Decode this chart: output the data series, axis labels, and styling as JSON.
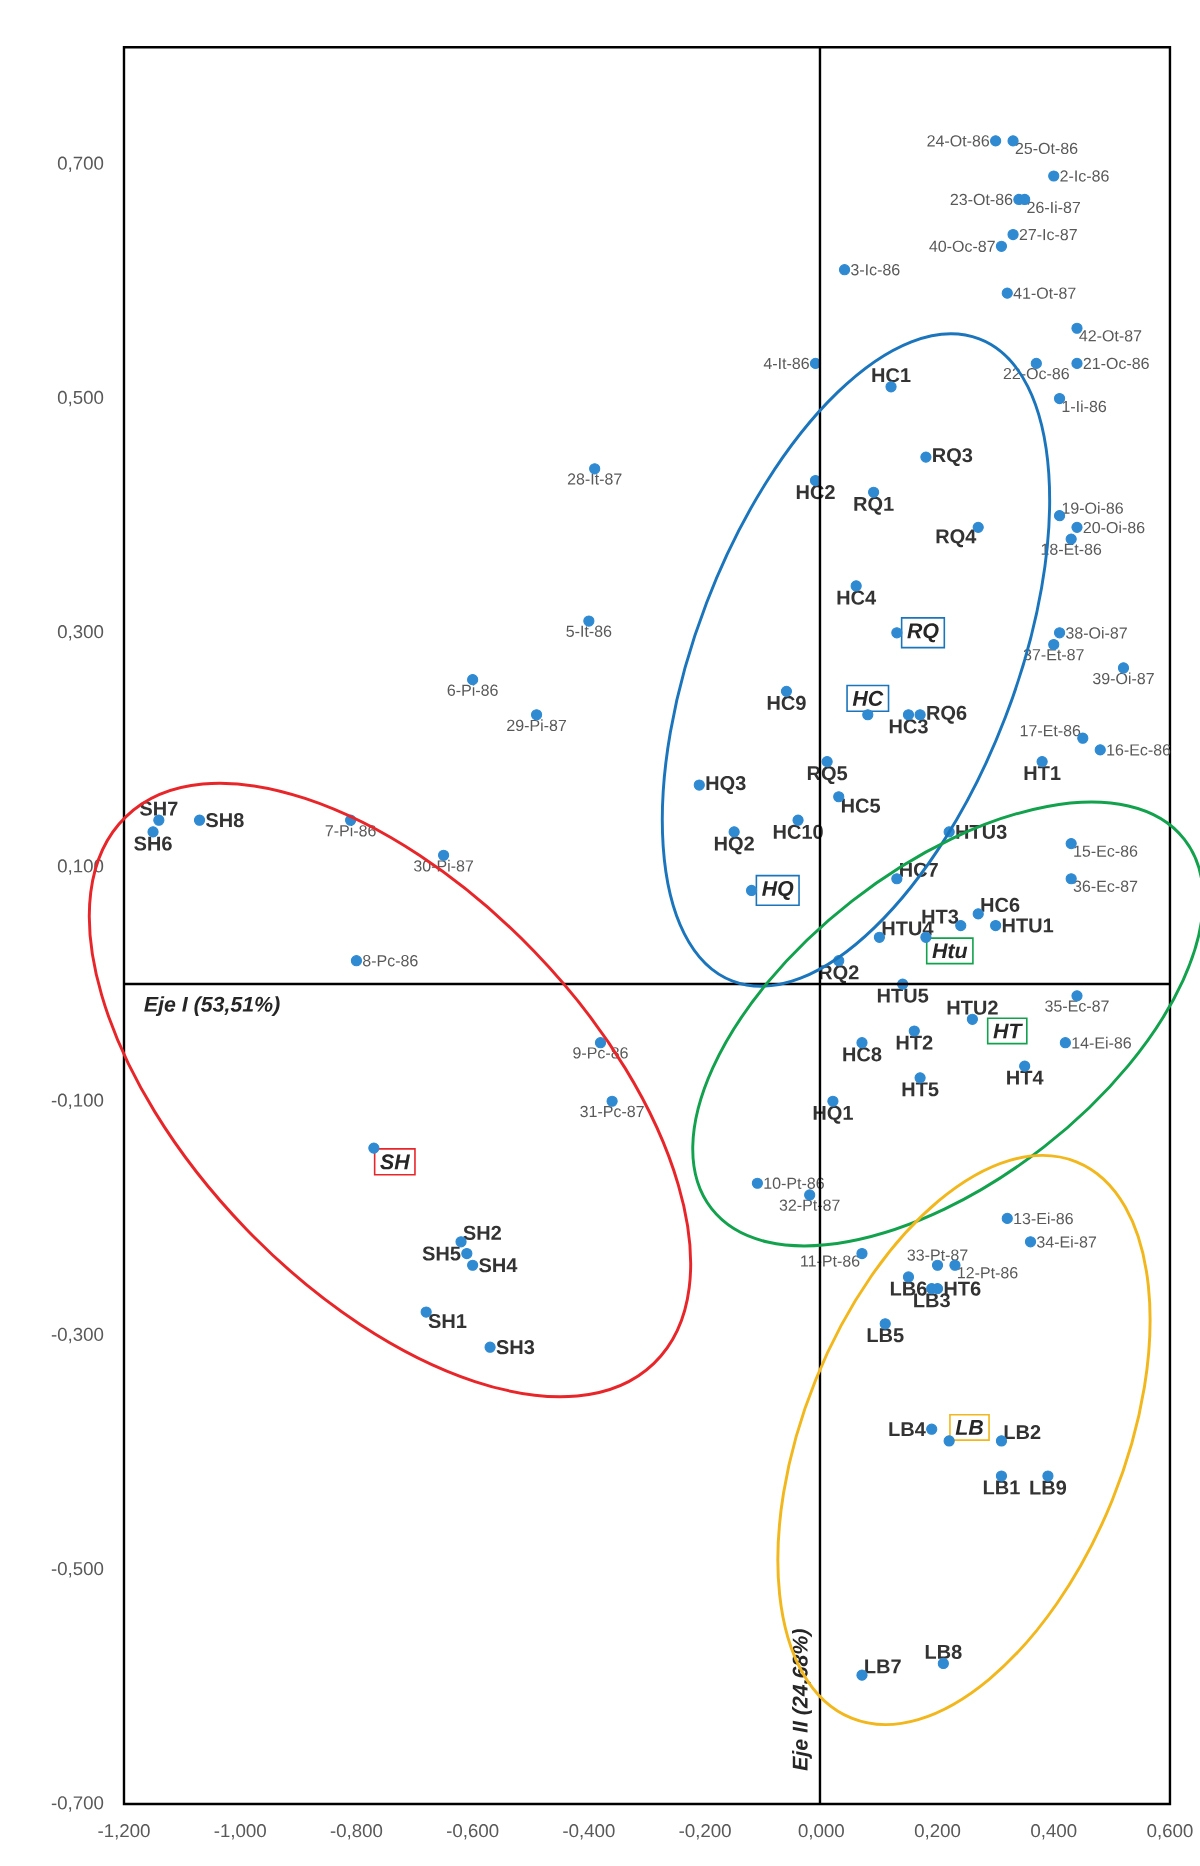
{
  "chart_data": {
    "type": "scatter",
    "xlabel": "Eje I (53,51%)",
    "ylabel": "Eje II (24,68%)",
    "color": "#2f8ad2",
    "marker": "circle",
    "xlim": [
      -1.2,
      0.6
    ],
    "ylim": [
      -0.7,
      0.8
    ],
    "xticks": [
      {
        "value": -1.2,
        "label": "-1,200"
      },
      {
        "value": -1.0,
        "label": "-1,000"
      },
      {
        "value": -0.8,
        "label": "-0,800"
      },
      {
        "value": -0.6,
        "label": "-0,600"
      },
      {
        "value": -0.4,
        "label": "-0,400"
      },
      {
        "value": -0.2,
        "label": "-0,200"
      },
      {
        "value": 0.0,
        "label": "0,000"
      },
      {
        "value": 0.2,
        "label": "0,200"
      },
      {
        "value": 0.4,
        "label": "0,400"
      },
      {
        "value": 0.6,
        "label": "0,600"
      }
    ],
    "yticks": [
      {
        "value": -0.7,
        "label": "-0,700"
      },
      {
        "value": -0.5,
        "label": "-0,500"
      },
      {
        "value": -0.3,
        "label": "-0,300"
      },
      {
        "value": -0.1,
        "label": "-0,100"
      },
      {
        "value": 0.1,
        "label": "0,100"
      },
      {
        "value": 0.3,
        "label": "0,300"
      },
      {
        "value": 0.5,
        "label": "0,500"
      },
      {
        "value": 0.7,
        "label": "0,700"
      }
    ],
    "x": [
      0.3,
      0.33,
      0.4,
      0.34,
      0.35,
      0.33,
      0.31,
      0.04,
      0.32,
      0.44,
      -0.01,
      0.37,
      0.44,
      0.41,
      0.41,
      0.44,
      0.43,
      0.41,
      0.4,
      0.52,
      0.45,
      0.48,
      0.43,
      0.43,
      0.44,
      0.42,
      -0.39,
      -0.4,
      -0.6,
      -0.49,
      -0.81,
      -0.65,
      -0.8,
      -0.38,
      -0.36,
      -0.11,
      -0.02,
      0.07,
      0.2,
      0.23,
      0.32,
      0.36,
      0.12,
      -0.01,
      0.09,
      0.18,
      0.27,
      0.06,
      -0.06,
      0.15,
      0.17,
      0.01,
      -0.21,
      0.03,
      -0.04,
      -0.15,
      0.13,
      0.22,
      0.38,
      0.24,
      0.27,
      0.3,
      0.1,
      0.03,
      0.14,
      0.26,
      0.16,
      0.07,
      0.17,
      0.35,
      0.02,
      0.15,
      0.19,
      0.2,
      0.11,
      0.19,
      0.31,
      0.31,
      0.39,
      0.07,
      0.21,
      -1.14,
      -1.15,
      -1.07,
      -0.62,
      -0.61,
      -0.6,
      -0.68,
      -0.57,
      -0.77,
      -0.12,
      0.08,
      0.13,
      0.18,
      0.22
    ],
    "values": [
      0.72,
      0.72,
      0.69,
      0.67,
      0.67,
      0.64,
      0.63,
      0.61,
      0.59,
      0.56,
      0.53,
      0.53,
      0.53,
      0.5,
      0.4,
      0.39,
      0.38,
      0.3,
      0.29,
      0.27,
      0.21,
      0.2,
      0.12,
      0.09,
      -0.01,
      -0.05,
      0.44,
      0.31,
      0.26,
      0.23,
      0.14,
      0.11,
      0.02,
      -0.05,
      -0.1,
      -0.17,
      -0.18,
      -0.23,
      -0.24,
      -0.24,
      -0.2,
      -0.22,
      0.51,
      0.43,
      0.42,
      0.45,
      0.39,
      0.34,
      0.25,
      0.23,
      0.23,
      0.19,
      0.17,
      0.16,
      0.14,
      0.13,
      0.09,
      0.13,
      0.19,
      0.05,
      0.06,
      0.05,
      0.04,
      0.02,
      0.0,
      -0.03,
      -0.04,
      -0.05,
      -0.08,
      -0.07,
      -0.1,
      -0.25,
      -0.26,
      -0.26,
      -0.29,
      -0.38,
      -0.39,
      -0.42,
      -0.42,
      -0.59,
      -0.58,
      0.14,
      0.13,
      0.14,
      -0.22,
      -0.23,
      -0.24,
      -0.28,
      -0.31,
      -0.14,
      0.08,
      0.23,
      0.3,
      0.04,
      -0.39
    ],
    "annotations": [
      {
        "text": "24-Ot-86",
        "x": 0.3,
        "y": 0.72
      },
      {
        "text": "25-Ot-86",
        "x": 0.33,
        "y": 0.72
      },
      {
        "text": "2-Ic-86",
        "x": 0.4,
        "y": 0.69
      },
      {
        "text": "23-Ot-86",
        "x": 0.34,
        "y": 0.67
      },
      {
        "text": "26-Ii-87",
        "x": 0.35,
        "y": 0.67
      },
      {
        "text": "27-Ic-87",
        "x": 0.33,
        "y": 0.64
      },
      {
        "text": "40-Oc-87",
        "x": 0.31,
        "y": 0.63
      },
      {
        "text": "3-Ic-86",
        "x": 0.04,
        "y": 0.61
      },
      {
        "text": "41-Ot-87",
        "x": 0.32,
        "y": 0.59
      },
      {
        "text": "42-Ot-87",
        "x": 0.44,
        "y": 0.56
      },
      {
        "text": "4-It-86",
        "x": -0.01,
        "y": 0.53
      },
      {
        "text": "22-Oc-86",
        "x": 0.37,
        "y": 0.53
      },
      {
        "text": "21-Oc-86",
        "x": 0.44,
        "y": 0.53
      },
      {
        "text": "1-Ii-86",
        "x": 0.41,
        "y": 0.5
      },
      {
        "text": "19-Oi-86",
        "x": 0.41,
        "y": 0.4
      },
      {
        "text": "20-Oi-86",
        "x": 0.44,
        "y": 0.39
      },
      {
        "text": "18-Et-86",
        "x": 0.43,
        "y": 0.38
      },
      {
        "text": "38-Oi-87",
        "x": 0.41,
        "y": 0.3
      },
      {
        "text": "37-Et-87",
        "x": 0.4,
        "y": 0.29
      },
      {
        "text": "39-Oi-87",
        "x": 0.52,
        "y": 0.27
      },
      {
        "text": "17-Et-86",
        "x": 0.45,
        "y": 0.21
      },
      {
        "text": "16-Ec-86",
        "x": 0.48,
        "y": 0.2
      },
      {
        "text": "15-Ec-86",
        "x": 0.43,
        "y": 0.12
      },
      {
        "text": "36-Ec-87",
        "x": 0.43,
        "y": 0.09
      },
      {
        "text": "35-Ec-87",
        "x": 0.44,
        "y": -0.01
      },
      {
        "text": "14-Ei-86",
        "x": 0.42,
        "y": -0.05
      },
      {
        "text": "28-It-87",
        "x": -0.39,
        "y": 0.44
      },
      {
        "text": "5-It-86",
        "x": -0.4,
        "y": 0.31
      },
      {
        "text": "6-Pi-86",
        "x": -0.6,
        "y": 0.26
      },
      {
        "text": "29-Pi-87",
        "x": -0.49,
        "y": 0.23
      },
      {
        "text": "7-Pi-86",
        "x": -0.81,
        "y": 0.14
      },
      {
        "text": "30-Pi-87",
        "x": -0.65,
        "y": 0.11
      },
      {
        "text": "8-Pc-86",
        "x": -0.8,
        "y": 0.02
      },
      {
        "text": "9-Pc-86",
        "x": -0.38,
        "y": -0.05
      },
      {
        "text": "31-Pc-87",
        "x": -0.36,
        "y": -0.1
      },
      {
        "text": "10-Pt-86",
        "x": -0.11,
        "y": -0.17
      },
      {
        "text": "32-Pt-87",
        "x": -0.02,
        "y": -0.18
      },
      {
        "text": "11-Pt-86",
        "x": 0.07,
        "y": -0.23
      },
      {
        "text": "33-Pt-87",
        "x": 0.2,
        "y": -0.24
      },
      {
        "text": "12-Pt-86",
        "x": 0.23,
        "y": -0.24
      },
      {
        "text": "13-Ei-86",
        "x": 0.32,
        "y": -0.2
      },
      {
        "text": "34-Ei-87",
        "x": 0.36,
        "y": -0.22
      },
      {
        "text": "HC1",
        "x": 0.12,
        "y": 0.51
      },
      {
        "text": "HC2",
        "x": -0.01,
        "y": 0.43
      },
      {
        "text": "RQ1",
        "x": 0.09,
        "y": 0.42
      },
      {
        "text": "RQ3",
        "x": 0.18,
        "y": 0.45
      },
      {
        "text": "RQ4",
        "x": 0.27,
        "y": 0.39
      },
      {
        "text": "HC4",
        "x": 0.06,
        "y": 0.34
      },
      {
        "text": "HC9",
        "x": -0.06,
        "y": 0.25
      },
      {
        "text": "HC3",
        "x": 0.15,
        "y": 0.23
      },
      {
        "text": "RQ6",
        "x": 0.17,
        "y": 0.23
      },
      {
        "text": "RQ5",
        "x": 0.01,
        "y": 0.19
      },
      {
        "text": "HQ3",
        "x": -0.21,
        "y": 0.17
      },
      {
        "text": "HC5",
        "x": 0.03,
        "y": 0.16
      },
      {
        "text": "HC10",
        "x": -0.04,
        "y": 0.14
      },
      {
        "text": "HQ2",
        "x": -0.15,
        "y": 0.13
      },
      {
        "text": "HC7",
        "x": 0.13,
        "y": 0.09
      },
      {
        "text": "HTU3",
        "x": 0.22,
        "y": 0.13
      },
      {
        "text": "HT1",
        "x": 0.38,
        "y": 0.19
      },
      {
        "text": "HT3",
        "x": 0.24,
        "y": 0.05
      },
      {
        "text": "HC6",
        "x": 0.27,
        "y": 0.06
      },
      {
        "text": "HTU1",
        "x": 0.3,
        "y": 0.05
      },
      {
        "text": "HTU4",
        "x": 0.1,
        "y": 0.04
      },
      {
        "text": "RQ2",
        "x": 0.03,
        "y": 0.02
      },
      {
        "text": "HTU5",
        "x": 0.14,
        "y": 0.0
      },
      {
        "text": "HTU2",
        "x": 0.26,
        "y": -0.03
      },
      {
        "text": "HT2",
        "x": 0.16,
        "y": -0.04
      },
      {
        "text": "HC8",
        "x": 0.07,
        "y": -0.05
      },
      {
        "text": "HT5",
        "x": 0.17,
        "y": -0.08
      },
      {
        "text": "HT4",
        "x": 0.35,
        "y": -0.07
      },
      {
        "text": "HQ1",
        "x": 0.02,
        "y": -0.1
      },
      {
        "text": "LB6",
        "x": 0.15,
        "y": -0.25
      },
      {
        "text": "LB3",
        "x": 0.19,
        "y": -0.26
      },
      {
        "text": "HT6",
        "x": 0.2,
        "y": -0.26
      },
      {
        "text": "LB5",
        "x": 0.11,
        "y": -0.29
      },
      {
        "text": "LB4",
        "x": 0.19,
        "y": -0.38
      },
      {
        "text": "LB2",
        "x": 0.31,
        "y": -0.39
      },
      {
        "text": "LB1",
        "x": 0.31,
        "y": -0.42
      },
      {
        "text": "LB9",
        "x": 0.39,
        "y": -0.42
      },
      {
        "text": "LB7",
        "x": 0.07,
        "y": -0.59
      },
      {
        "text": "LB8",
        "x": 0.21,
        "y": -0.58
      },
      {
        "text": "SH7",
        "x": -1.14,
        "y": 0.14
      },
      {
        "text": "SH6",
        "x": -1.15,
        "y": 0.13
      },
      {
        "text": "SH8",
        "x": -1.07,
        "y": 0.14
      },
      {
        "text": "SH2",
        "x": -0.62,
        "y": -0.22
      },
      {
        "text": "SH5",
        "x": -0.61,
        "y": -0.23
      },
      {
        "text": "SH4",
        "x": -0.6,
        "y": -0.24
      },
      {
        "text": "SH1",
        "x": -0.68,
        "y": -0.28
      },
      {
        "text": "SH3",
        "x": -0.57,
        "y": -0.31
      },
      {
        "text": "SH",
        "x": -0.77,
        "y": -0.14
      },
      {
        "text": "HQ",
        "x": -0.12,
        "y": 0.08
      },
      {
        "text": "HC",
        "x": 0.08,
        "y": 0.23
      },
      {
        "text": "RQ",
        "x": 0.13,
        "y": 0.3
      },
      {
        "text": "Htu",
        "x": 0.18,
        "y": 0.04
      },
      {
        "text": "HT",
        "x": 0.32,
        "y": -0.04
      },
      {
        "text": "LB",
        "x": 0.22,
        "y": -0.39
      }
    ]
  }
}
